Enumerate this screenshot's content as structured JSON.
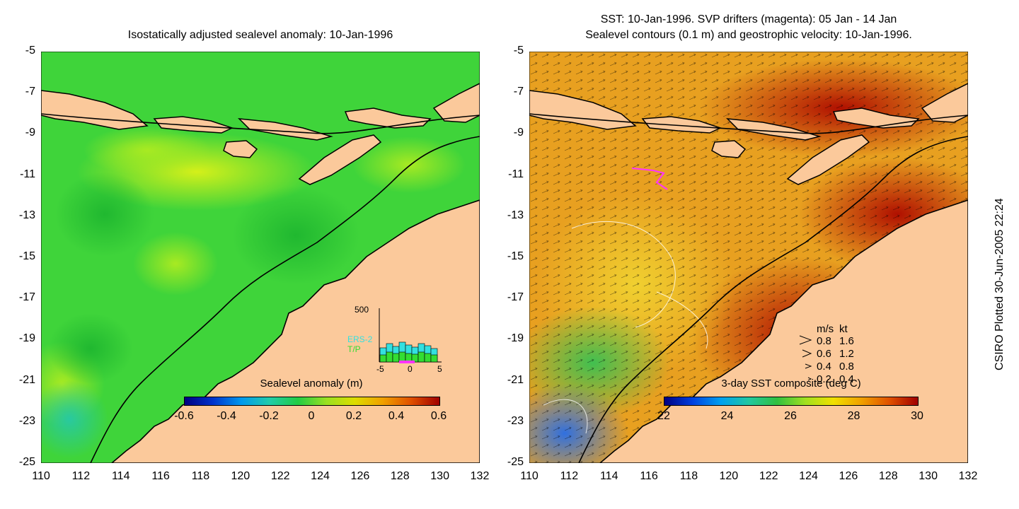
{
  "left_panel": {
    "title": "Isostatically adjusted sealevel anomaly: 10-Jan-1996",
    "colorbar_title": "Sealevel anomaly (m)",
    "colorbar_ticks": [
      "-0.6",
      "-0.4",
      "-0.2",
      "0",
      "0.2",
      "0.4",
      "0.6"
    ],
    "inset": {
      "y_max_label": "500",
      "series": [
        "ERS-2",
        "T/P"
      ],
      "x_ticks": [
        "-5",
        "0",
        "5"
      ]
    }
  },
  "right_panel": {
    "title_line1": "SST: 10-Jan-1996. SVP drifters (magenta): 05 Jan - 14 Jan",
    "title_line2": "Sealevel contours (0.1 m) and geostrophic velocity: 10-Jan-1996.",
    "colorbar_title": "3-day SST composite (deg C)",
    "colorbar_ticks": [
      "22",
      "24",
      "26",
      "28",
      "30"
    ],
    "velocity_legend": {
      "header_ms": "m/s",
      "header_kt": "kt",
      "rows": [
        {
          "ms": "0.8",
          "kt": "1.6"
        },
        {
          "ms": "0.6",
          "kt": "1.2"
        },
        {
          "ms": "0.4",
          "kt": "0.8"
        },
        {
          "ms": "0.2",
          "kt": "0.4"
        }
      ]
    }
  },
  "axes": {
    "lat_ticks": [
      "-5",
      "-7",
      "-9",
      "-11",
      "-13",
      "-15",
      "-17",
      "-19",
      "-21",
      "-23",
      "-25"
    ],
    "lon_ticks": [
      "110",
      "112",
      "114",
      "116",
      "118",
      "120",
      "122",
      "124",
      "126",
      "128",
      "130",
      "132"
    ]
  },
  "credit": "CSIRO Plotted 30-Jun-2005 22:24",
  "colors": {
    "land": "#fbc99b",
    "sea_base_left": "#3fd43a",
    "sea_base_right": "#e8a020",
    "contour": "#000000"
  }
}
